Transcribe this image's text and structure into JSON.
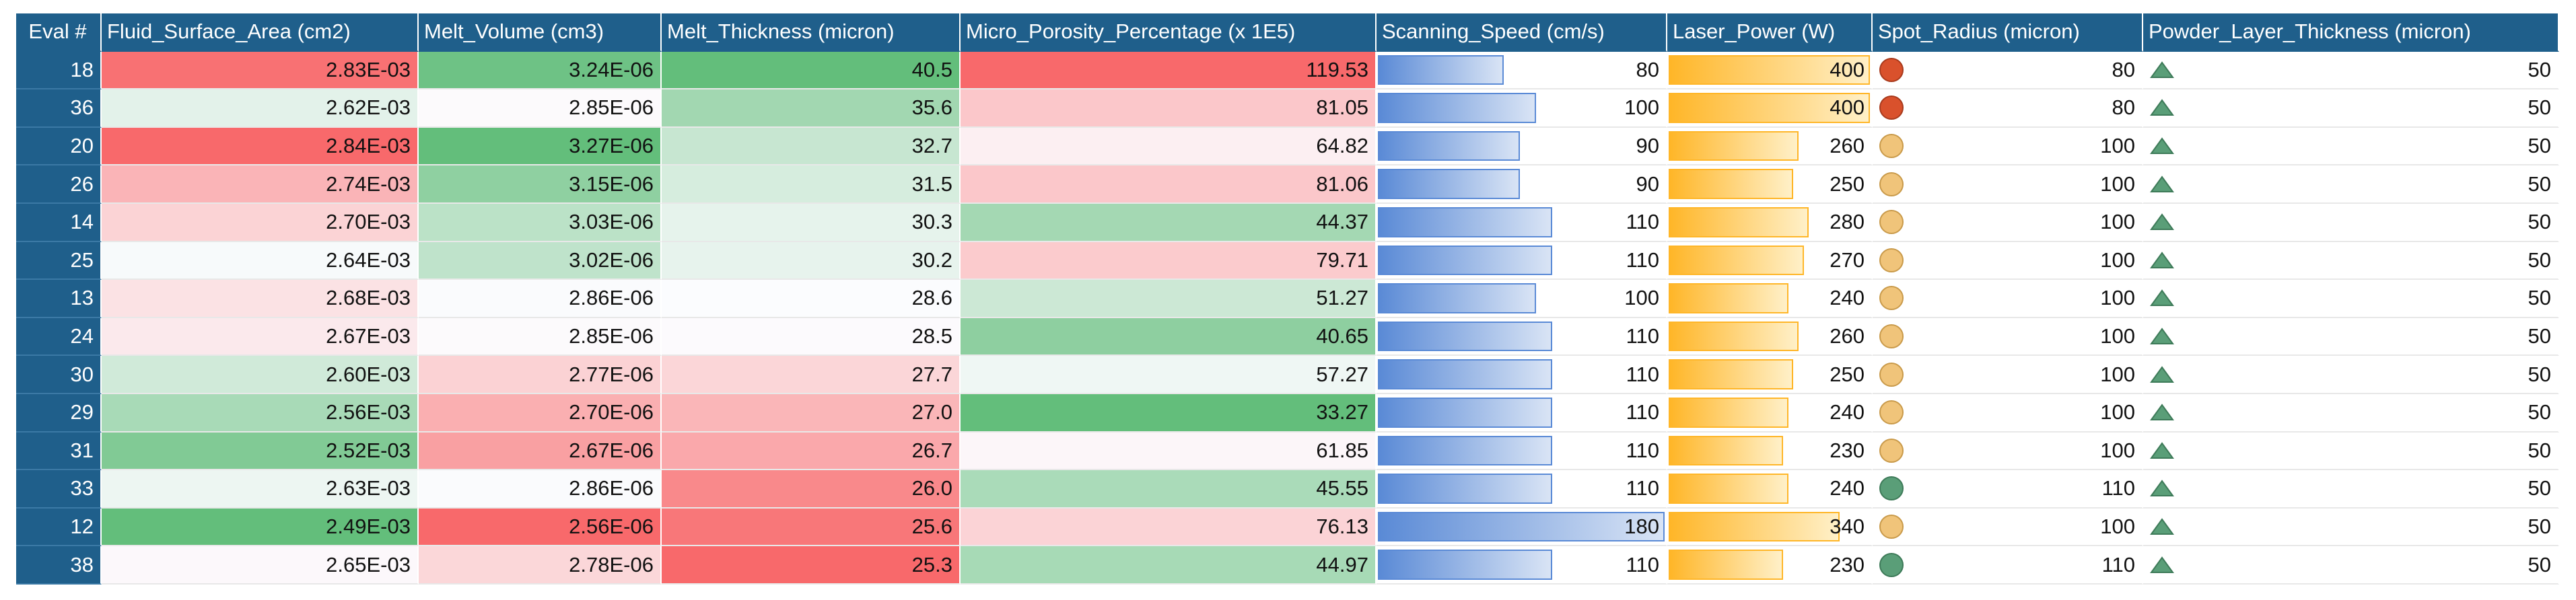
{
  "table": {
    "columns": [
      {
        "title": "Eval #",
        "format": "index"
      },
      {
        "title": "Fluid_Surface_Area (cm2)",
        "format": "heat-red-high"
      },
      {
        "title": "Melt_Volume (cm3)",
        "format": "heat-green-high"
      },
      {
        "title": "Melt_Thickness (micron)",
        "format": "heat-green-high"
      },
      {
        "title": "Micro_Porosity_Percentage (x 1E5)",
        "format": "heat-red-high"
      },
      {
        "title": "Scanning_Speed (cm/s)",
        "format": "bar-blue"
      },
      {
        "title": "Laser_Power (W)",
        "format": "bar-orange"
      },
      {
        "title": "Spot_Radius (micron)",
        "format": "icon-circle"
      },
      {
        "title": "Powder_Layer_Thickness (micron)",
        "format": "icon-triangle"
      }
    ],
    "rows": [
      [
        "18",
        "2.83E-03",
        "3.24E-06",
        "40.5",
        "119.53",
        "80",
        "400",
        "80",
        "50"
      ],
      [
        "36",
        "2.62E-03",
        "2.85E-06",
        "35.6",
        "81.05",
        "100",
        "400",
        "80",
        "50"
      ],
      [
        "20",
        "2.84E-03",
        "3.27E-06",
        "32.7",
        "64.82",
        "90",
        "260",
        "100",
        "50"
      ],
      [
        "26",
        "2.74E-03",
        "3.15E-06",
        "31.5",
        "81.06",
        "90",
        "250",
        "100",
        "50"
      ],
      [
        "14",
        "2.70E-03",
        "3.03E-06",
        "30.3",
        "44.37",
        "110",
        "280",
        "100",
        "50"
      ],
      [
        "25",
        "2.64E-03",
        "3.02E-06",
        "30.2",
        "79.71",
        "110",
        "270",
        "100",
        "50"
      ],
      [
        "13",
        "2.68E-03",
        "2.86E-06",
        "28.6",
        "51.27",
        "100",
        "240",
        "100",
        "50"
      ],
      [
        "24",
        "2.67E-03",
        "2.85E-06",
        "28.5",
        "40.65",
        "110",
        "260",
        "100",
        "50"
      ],
      [
        "30",
        "2.60E-03",
        "2.77E-06",
        "27.7",
        "57.27",
        "110",
        "250",
        "100",
        "50"
      ],
      [
        "29",
        "2.56E-03",
        "2.70E-06",
        "27.0",
        "33.27",
        "110",
        "240",
        "100",
        "50"
      ],
      [
        "31",
        "2.52E-03",
        "2.67E-06",
        "26.7",
        "61.85",
        "110",
        "230",
        "100",
        "50"
      ],
      [
        "33",
        "2.63E-03",
        "2.86E-06",
        "26.0",
        "45.55",
        "110",
        "240",
        "110",
        "50"
      ],
      [
        "12",
        "2.49E-03",
        "2.56E-06",
        "25.6",
        "76.13",
        "180",
        "340",
        "100",
        "50"
      ],
      [
        "38",
        "2.65E-03",
        "2.78E-06",
        "25.3",
        "44.97",
        "110",
        "230",
        "110",
        "50"
      ]
    ]
  }
}
